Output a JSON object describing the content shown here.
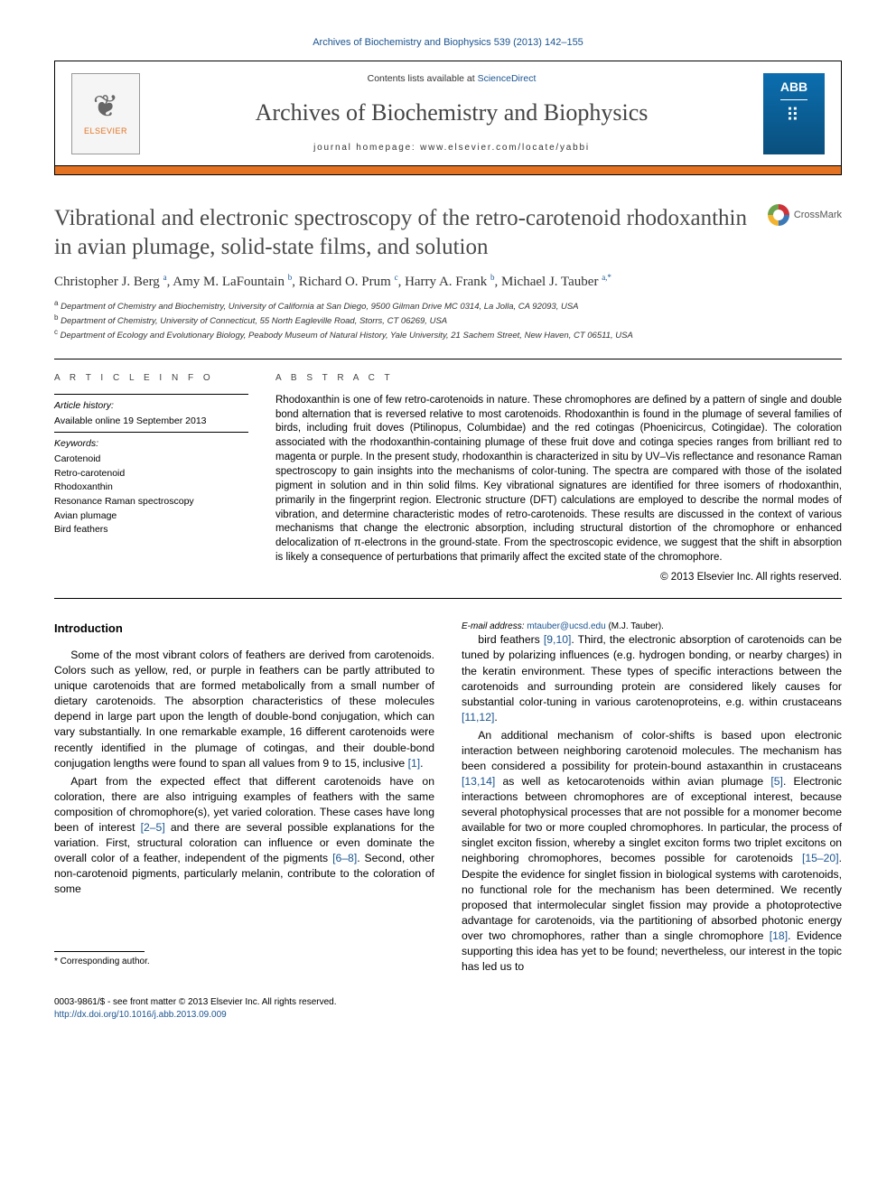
{
  "journal_ref": "Archives of Biochemistry and Biophysics 539 (2013) 142–155",
  "header": {
    "contents_line_pre": "Contents lists available at ",
    "contents_link": "ScienceDirect",
    "journal_name": "Archives of Biochemistry and Biophysics",
    "homepage_label": "journal homepage: ",
    "homepage_url": "www.elsevier.com/locate/yabbi",
    "elsevier_label": "ELSEVIER",
    "cover_abbrev": "ABB"
  },
  "title": "Vibrational and electronic spectroscopy of the retro-carotenoid rhodoxanthin in avian plumage, solid-state films, and solution",
  "crossmark_label": "CrossMark",
  "authors_html": "Christopher J. Berg <sup>a</sup>, Amy M. LaFountain <sup>b</sup>, Richard O. Prum <sup>c</sup>, Harry A. Frank <sup>b</sup>, Michael J. Tauber <sup>a,*</sup>",
  "affiliations": [
    {
      "sup": "a",
      "text": "Department of Chemistry and Biochemistry, University of California at San Diego, 9500 Gilman Drive MC 0314, La Jolla, CA 92093, USA"
    },
    {
      "sup": "b",
      "text": "Department of Chemistry, University of Connecticut, 55 North Eagleville Road, Storrs, CT 06269, USA"
    },
    {
      "sup": "c",
      "text": "Department of Ecology and Evolutionary Biology, Peabody Museum of Natural History, Yale University, 21 Sachem Street, New Haven, CT 06511, USA"
    }
  ],
  "article_info": {
    "label": "A R T I C L E   I N F O",
    "history_hdr": "Article history:",
    "history_val": "Available online 19 September 2013",
    "keywords_hdr": "Keywords:",
    "keywords": [
      "Carotenoid",
      "Retro-carotenoid",
      "Rhodoxanthin",
      "Resonance Raman spectroscopy",
      "Avian plumage",
      "Bird feathers"
    ]
  },
  "abstract": {
    "label": "A B S T R A C T",
    "text": "Rhodoxanthin is one of few retro-carotenoids in nature. These chromophores are defined by a pattern of single and double bond alternation that is reversed relative to most carotenoids. Rhodoxanthin is found in the plumage of several families of birds, including fruit doves (Ptilinopus, Columbidae) and the red cotingas (Phoenicircus, Cotingidae). The coloration associated with the rhodoxanthin-containing plumage of these fruit dove and cotinga species ranges from brilliant red to magenta or purple. In the present study, rhodoxanthin is characterized in situ by UV–Vis reflectance and resonance Raman spectroscopy to gain insights into the mechanisms of color-tuning. The spectra are compared with those of the isolated pigment in solution and in thin solid films. Key vibrational signatures are identified for three isomers of rhodoxanthin, primarily in the fingerprint region. Electronic structure (DFT) calculations are employed to describe the normal modes of vibration, and determine characteristic modes of retro-carotenoids. These results are discussed in the context of various mechanisms that change the electronic absorption, including structural distortion of the chromophore or enhanced delocalization of π-electrons in the ground-state. From the spectroscopic evidence, we suggest that the shift in absorption is likely a consequence of perturbations that primarily affect the excited state of the chromophore.",
    "copyright": "© 2013 Elsevier Inc. All rights reserved."
  },
  "body": {
    "intro_heading": "Introduction",
    "p1": "Some of the most vibrant colors of feathers are derived from carotenoids. Colors such as yellow, red, or purple in feathers can be partly attributed to unique carotenoids that are formed metabolically from a small number of dietary carotenoids. The absorption characteristics of these molecules depend in large part upon the length of double-bond conjugation, which can vary substantially. In one remarkable example, 16 different carotenoids were recently identified in the plumage of cotingas, and their double-bond conjugation lengths were found to span all values from 9 to 15, inclusive ",
    "c1": "[1]",
    "p1b": ".",
    "p2": "Apart from the expected effect that different carotenoids have on coloration, there are also intriguing examples of feathers with the same composition of chromophore(s), yet varied coloration. These cases have long been of interest ",
    "c2": "[2–5]",
    "p2b": " and there are several possible explanations for the variation. First, structural coloration can influence or even dominate the overall color of a feather, independent of the pigments ",
    "c3": "[6–8]",
    "p2c": ". Second, other non-carotenoid pigments, particularly melanin, contribute to the coloration of some",
    "p3a": "bird feathers ",
    "c4": "[9,10]",
    "p3b": ". Third, the electronic absorption of carotenoids can be tuned by polarizing influences (e.g. hydrogen bonding, or nearby charges) in the keratin environment. These types of specific interactions between the carotenoids and surrounding protein are considered likely causes for substantial color-tuning in various carotenoproteins, e.g. within crustaceans ",
    "c5": "[11,12]",
    "p3c": ".",
    "p4a": "An additional mechanism of color-shifts is based upon electronic interaction between neighboring carotenoid molecules. The mechanism has been considered a possibility for protein-bound astaxanthin in crustaceans ",
    "c6": "[13,14]",
    "p4b": " as well as ketocarotenoids within avian plumage ",
    "c7": "[5]",
    "p4c": ". Electronic interactions between chromophores are of exceptional interest, because several photophysical processes that are not possible for a monomer become available for two or more coupled chromophores. In particular, the process of singlet exciton fission, whereby a singlet exciton forms two triplet excitons on neighboring chromophores, becomes possible for carotenoids ",
    "c8": "[15–20]",
    "p4d": ". Despite the evidence for singlet fission in biological systems with carotenoids, no functional role for the mechanism has been determined. We recently proposed that intermolecular singlet fission may provide a photoprotective advantage for carotenoids, via the partitioning of absorbed photonic energy over two chromophores, rather than a single chromophore ",
    "c9": "[18]",
    "p4e": ". Evidence supporting this idea has yet to be found; nevertheless, our interest in the topic has led us to"
  },
  "footnote": {
    "corr": "* Corresponding author.",
    "email_label": "E-mail address: ",
    "email": "mtauber@ucsd.edu",
    "email_post": " (M.J. Tauber)."
  },
  "bottom": {
    "issn": "0003-9861/$ - see front matter © 2013 Elsevier Inc. All rights reserved.",
    "doi": "http://dx.doi.org/10.1016/j.abb.2013.09.009"
  },
  "colors": {
    "link": "#1a5490",
    "accent": "#e37222",
    "text": "#000000"
  }
}
